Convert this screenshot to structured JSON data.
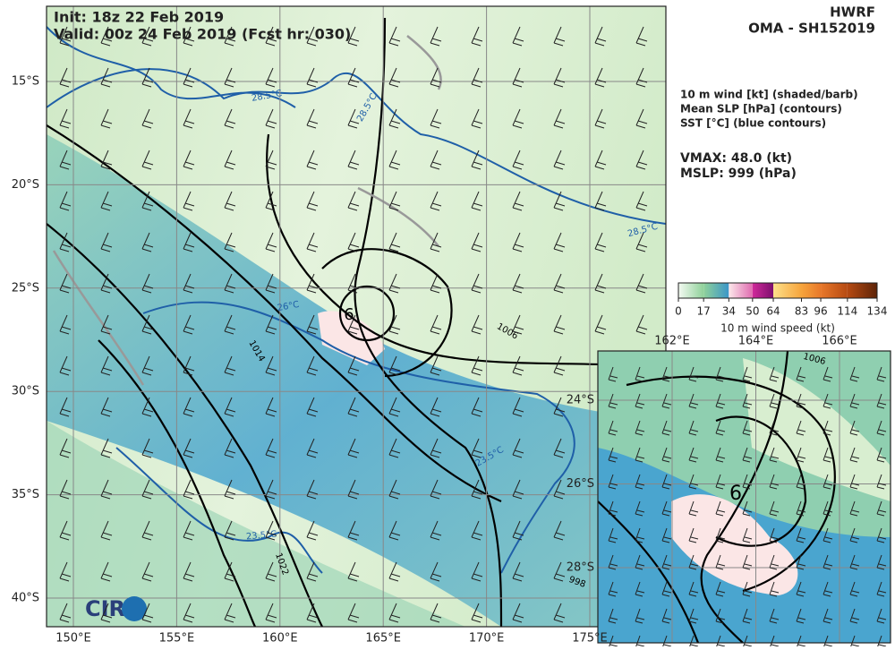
{
  "header": {
    "init": "Init:  18z 22 Feb 2019",
    "valid": "Valid: 00z 24 Feb 2019 (Fcst hr: 030)",
    "model": "HWRF",
    "storm": "OMA - SH152019"
  },
  "legend": {
    "lines": [
      "10 m wind [kt] (shaded/barb)",
      "Mean SLP [hPa] (contours)",
      "SST [°C] (blue contours)"
    ],
    "vmax": "VMAX:  48.0 (kt)",
    "mslp": "MSLP:  999 (hPa)"
  },
  "colorbar": {
    "label": "10 m wind speed (kt)",
    "range": [
      0,
      134
    ],
    "ticks": [
      0,
      17,
      34,
      50,
      64,
      83,
      96,
      114,
      134
    ]
  },
  "map": {
    "lat_labels": [
      "15°S",
      "20°S",
      "25°S",
      "30°S",
      "35°S",
      "40°S"
    ],
    "lon_labels": [
      "150°E",
      "155°E",
      "160°E",
      "165°E",
      "170°E",
      "175°E"
    ],
    "contour_labels": [
      "28.5°C",
      "28.5°C",
      "28.5°C",
      "26°C",
      "1014",
      "1006",
      "23.5°C",
      "23.5°C",
      "1022",
      "998",
      "6"
    ],
    "logo": "CIRA"
  },
  "inset": {
    "lon_labels": [
      "162°E",
      "164°E",
      "166°E"
    ],
    "lat_labels": [
      "24°S",
      "26°S",
      "28°S"
    ],
    "contour_labels": [
      "1006",
      "6"
    ]
  }
}
